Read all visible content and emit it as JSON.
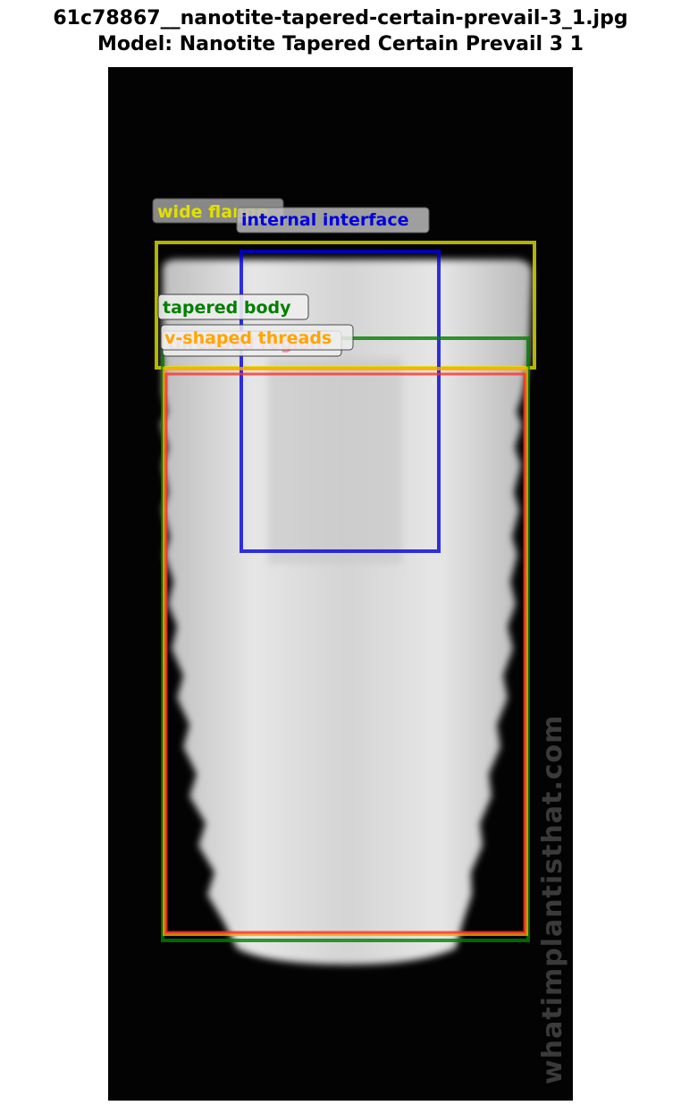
{
  "header": {
    "title": "61c78867__nanotite-tapered-certain-prevail-3_1.jpg",
    "subtitle": "Model: Nanotite Tapered Certain Prevail 3 1"
  },
  "annotations": [
    {
      "label": "wide flange",
      "color": "#e0e000"
    },
    {
      "label": "internal interface",
      "color": "#0000dd"
    },
    {
      "label": "tapered body",
      "color": "#008000"
    },
    {
      "label": "threaded region",
      "color": "#ff3030"
    },
    {
      "label": "v-shaped threads",
      "color": "#ffa500"
    }
  ],
  "watermark": "whatimplantisthat.com"
}
